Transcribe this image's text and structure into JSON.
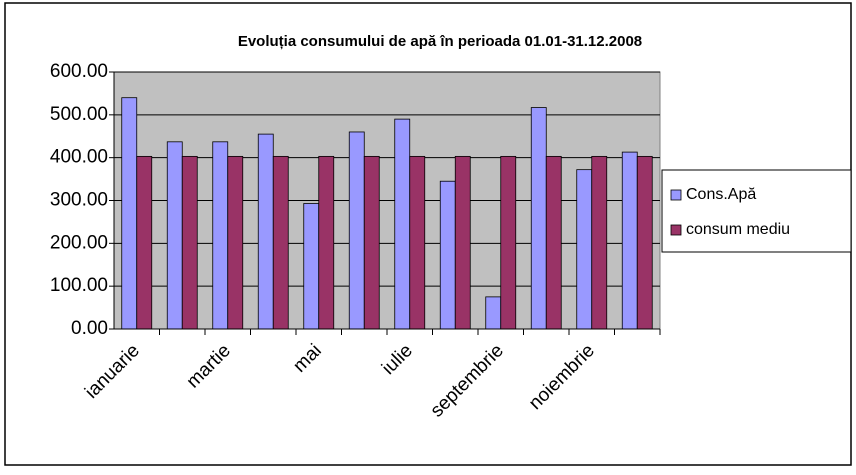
{
  "chart_data": {
    "type": "bar",
    "title": "Evoluția consumului de apă în perioada 01.01-31.12.2008",
    "categories": [
      "ianuarie",
      null,
      "martie",
      null,
      "mai",
      null,
      "iulie",
      null,
      "septembrie",
      null,
      "noiembrie",
      null
    ],
    "series": [
      {
        "name": "Cons.Apă",
        "color": "#9999ff",
        "values": [
          540,
          437,
          437,
          455,
          293,
          460,
          490,
          345,
          75,
          517,
          372,
          413
        ]
      },
      {
        "name": "consum mediu",
        "color": "#993366",
        "values": [
          403,
          403,
          403,
          403,
          403,
          403,
          403,
          403,
          403,
          403,
          403,
          403
        ]
      }
    ],
    "ylim": [
      0,
      600
    ],
    "yticks": [
      {
        "value": 0,
        "label": "0.00"
      },
      {
        "value": 100,
        "label": "100.00"
      },
      {
        "value": 200,
        "label": "200.00"
      },
      {
        "value": 300,
        "label": "300.00"
      },
      {
        "value": 400,
        "label": "400.00"
      },
      {
        "value": 500,
        "label": "500.00"
      },
      {
        "value": 600,
        "label": "600.00"
      }
    ],
    "grid": true,
    "legend": "right"
  }
}
